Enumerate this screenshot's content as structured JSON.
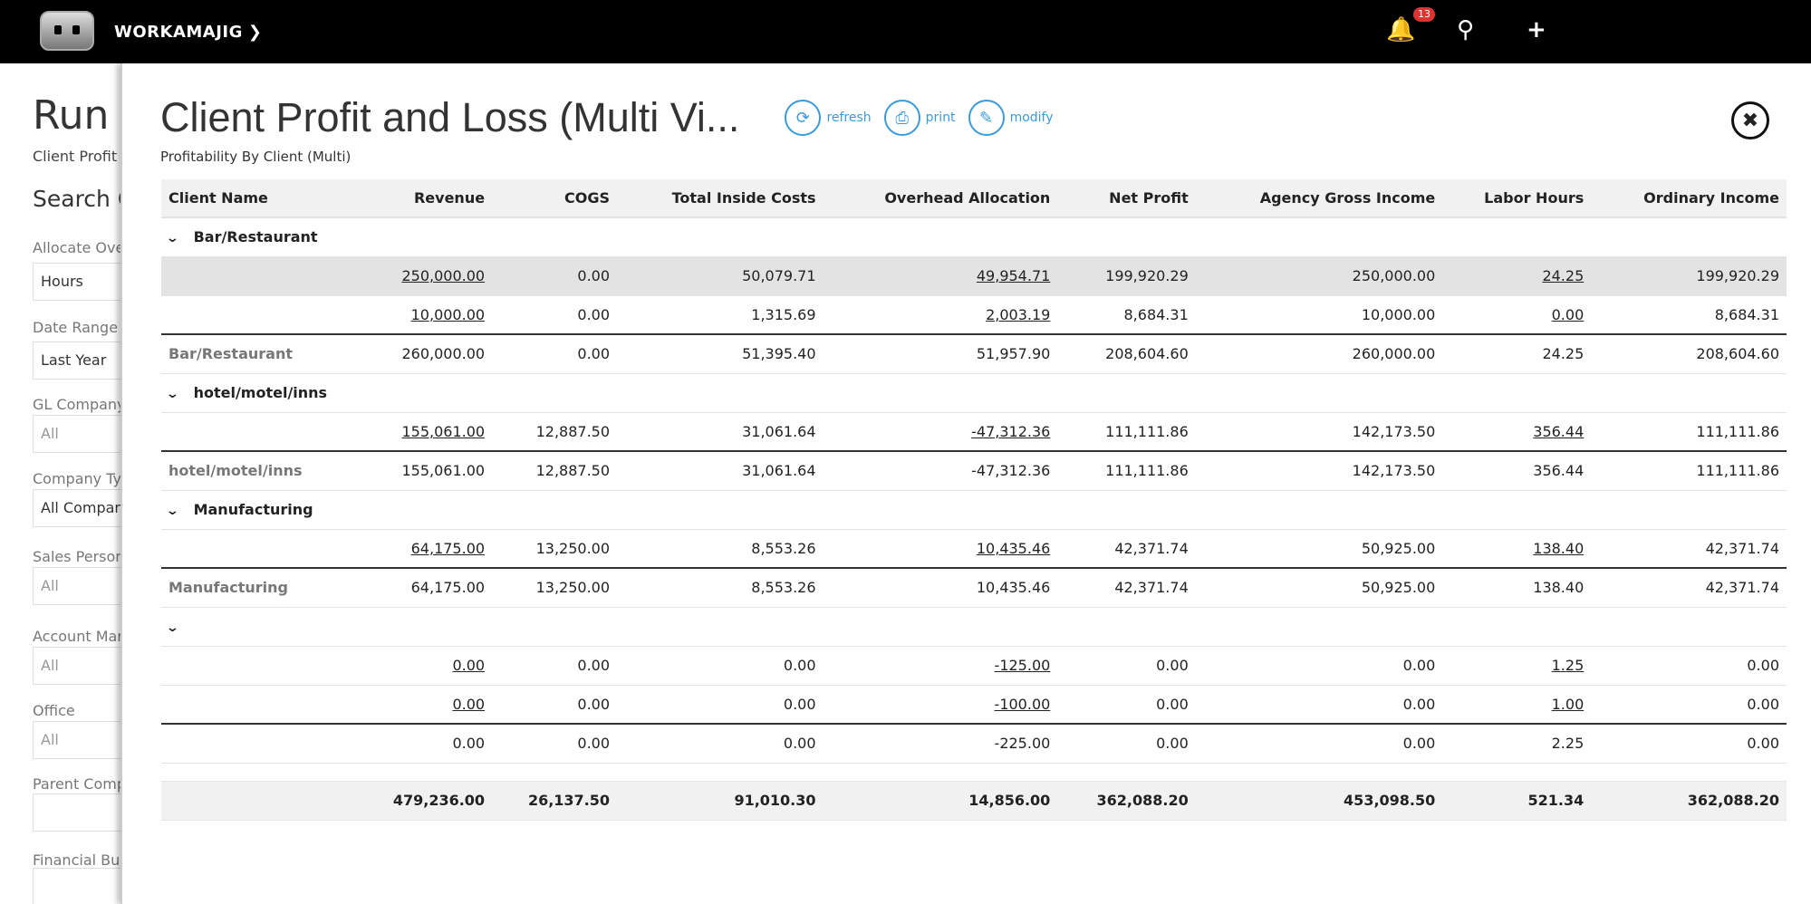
{
  "topbar": {
    "brand": "WORKAMAJIG",
    "notifications": "13",
    "icons": [
      "bell-icon",
      "search-icon",
      "plus-icon"
    ]
  },
  "background": {
    "title": "Run",
    "subtitle": "Client Profit",
    "search_heading": "Search C",
    "fields": [
      {
        "label": "Allocate Ove",
        "value": "Hours"
      },
      {
        "label": "Date Range",
        "value": "Last Year"
      },
      {
        "label": "GL Company",
        "value": "All"
      },
      {
        "label": "Company Ty",
        "value": "All Compan"
      },
      {
        "label": "Sales Person",
        "value": "All"
      },
      {
        "label": "Account Mar",
        "value": "All"
      },
      {
        "label": "Office",
        "value": "All"
      },
      {
        "label": "Parent Comp",
        "value": ""
      },
      {
        "label": "Financial Bu",
        "value": ""
      }
    ]
  },
  "panel": {
    "title": "Client Profit and Loss (Multi Vi...",
    "subtitle": "Profitability By Client (Multi)",
    "actions": {
      "refresh": "refresh",
      "print": "print",
      "modify": "modify"
    },
    "accent": "#3a9ad9"
  },
  "table": {
    "columns": [
      "Client Name",
      "Revenue",
      "COGS",
      "Total Inside Costs",
      "Overhead Allocation",
      "Net Profit",
      "Agency Gross Income",
      "Labor Hours",
      "Ordinary Income"
    ],
    "groups": [
      {
        "name": "Bar/Restaurant",
        "rows": [
          [
            "",
            "250,000.00",
            "0.00",
            "50,079.71",
            "49,954.71",
            "199,920.29",
            "250,000.00",
            "24.25",
            "199,920.29"
          ],
          [
            "",
            "10,000.00",
            "0.00",
            "1,315.69",
            "2,003.19",
            "8,684.31",
            "10,000.00",
            "0.00",
            "8,684.31"
          ]
        ],
        "subtotal": [
          "Bar/Restaurant",
          "260,000.00",
          "0.00",
          "51,395.40",
          "51,957.90",
          "208,604.60",
          "260,000.00",
          "24.25",
          "208,604.60"
        ]
      },
      {
        "name": "hotel/motel/inns",
        "rows": [
          [
            "",
            "155,061.00",
            "12,887.50",
            "31,061.64",
            "-47,312.36",
            "111,111.86",
            "142,173.50",
            "356.44",
            "111,111.86"
          ]
        ],
        "subtotal": [
          "hotel/motel/inns",
          "155,061.00",
          "12,887.50",
          "31,061.64",
          "-47,312.36",
          "111,111.86",
          "142,173.50",
          "356.44",
          "111,111.86"
        ]
      },
      {
        "name": "Manufacturing",
        "rows": [
          [
            "",
            "64,175.00",
            "13,250.00",
            "8,553.26",
            "10,435.46",
            "42,371.74",
            "50,925.00",
            "138.40",
            "42,371.74"
          ]
        ],
        "subtotal": [
          "Manufacturing",
          "64,175.00",
          "13,250.00",
          "8,553.26",
          "10,435.46",
          "42,371.74",
          "50,925.00",
          "138.40",
          "42,371.74"
        ]
      },
      {
        "name": "",
        "rows": [
          [
            "",
            "0.00",
            "0.00",
            "0.00",
            "-125.00",
            "0.00",
            "0.00",
            "1.25",
            "0.00"
          ],
          [
            "",
            "0.00",
            "0.00",
            "0.00",
            "-100.00",
            "0.00",
            "0.00",
            "1.00",
            "0.00"
          ]
        ],
        "subtotal": [
          "",
          "0.00",
          "0.00",
          "0.00",
          "-225.00",
          "0.00",
          "0.00",
          "2.25",
          "0.00"
        ]
      }
    ],
    "total": [
      "",
      "479,236.00",
      "26,137.50",
      "91,010.30",
      "14,856.00",
      "362,088.20",
      "453,098.50",
      "521.34",
      "362,088.20"
    ]
  }
}
